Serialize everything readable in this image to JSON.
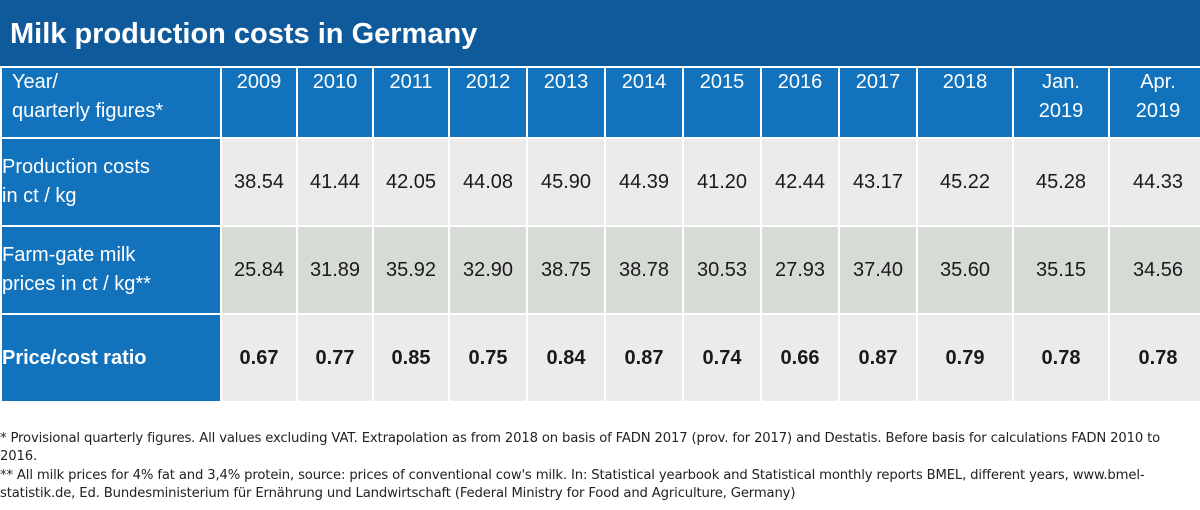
{
  "title": "Milk production costs in Germany",
  "colors": {
    "title_bg": "#0e5a9a",
    "header_bg": "#1272bc",
    "row_light": "#ebebeb",
    "row_dark": "#d7dbd6"
  },
  "table": {
    "row_header_label": [
      "Year/",
      "quarterly figures*"
    ],
    "columns": [
      [
        "2009"
      ],
      [
        "2010"
      ],
      [
        "2011"
      ],
      [
        "2012"
      ],
      [
        "2013"
      ],
      [
        "2014"
      ],
      [
        "2015"
      ],
      [
        "2016"
      ],
      [
        "2017"
      ],
      [
        "2018"
      ],
      [
        "Jan.",
        "2019"
      ],
      [
        "Apr.",
        "2019"
      ]
    ],
    "rows": [
      {
        "label": [
          "Production costs",
          "in ct / kg"
        ],
        "values": [
          "38.54",
          "41.44",
          "42.05",
          "44.08",
          "45.90",
          "44.39",
          "41.20",
          "42.44",
          "43.17",
          "45.22",
          "45.28",
          "44.33"
        ]
      },
      {
        "label": [
          "Farm-gate milk",
          "prices in ct / kg**"
        ],
        "values": [
          "25.84",
          "31.89",
          "35.92",
          "32.90",
          "38.75",
          "38.78",
          "30.53",
          "27.93",
          "37.40",
          "35.60",
          "35.15",
          "34.56"
        ]
      },
      {
        "label": [
          "Price/cost ratio"
        ],
        "values": [
          "0.67",
          "0.77",
          "0.85",
          "0.75",
          "0.84",
          "0.87",
          "0.74",
          "0.66",
          "0.87",
          "0.79",
          "0.78",
          "0.78"
        ]
      }
    ]
  },
  "footnotes": [
    "* Provisional quarterly figures. All values excluding VAT. Extrapolation as from 2018 on basis of FADN 2017 (prov. for 2017) and Destatis. Before basis for calculations FADN 2010 to 2016.",
    "**  All milk prices for 4% fat and 3,4% protein, source: prices of conventional cow's milk. In: Statistical yearbook and Statistical monthly reports BMEL, different years, www.bmel-statistik.de, Ed. Bundesministerium für Ernährung und Landwirtschaft (Federal Ministry for Food and Agriculture, Germany)"
  ]
}
